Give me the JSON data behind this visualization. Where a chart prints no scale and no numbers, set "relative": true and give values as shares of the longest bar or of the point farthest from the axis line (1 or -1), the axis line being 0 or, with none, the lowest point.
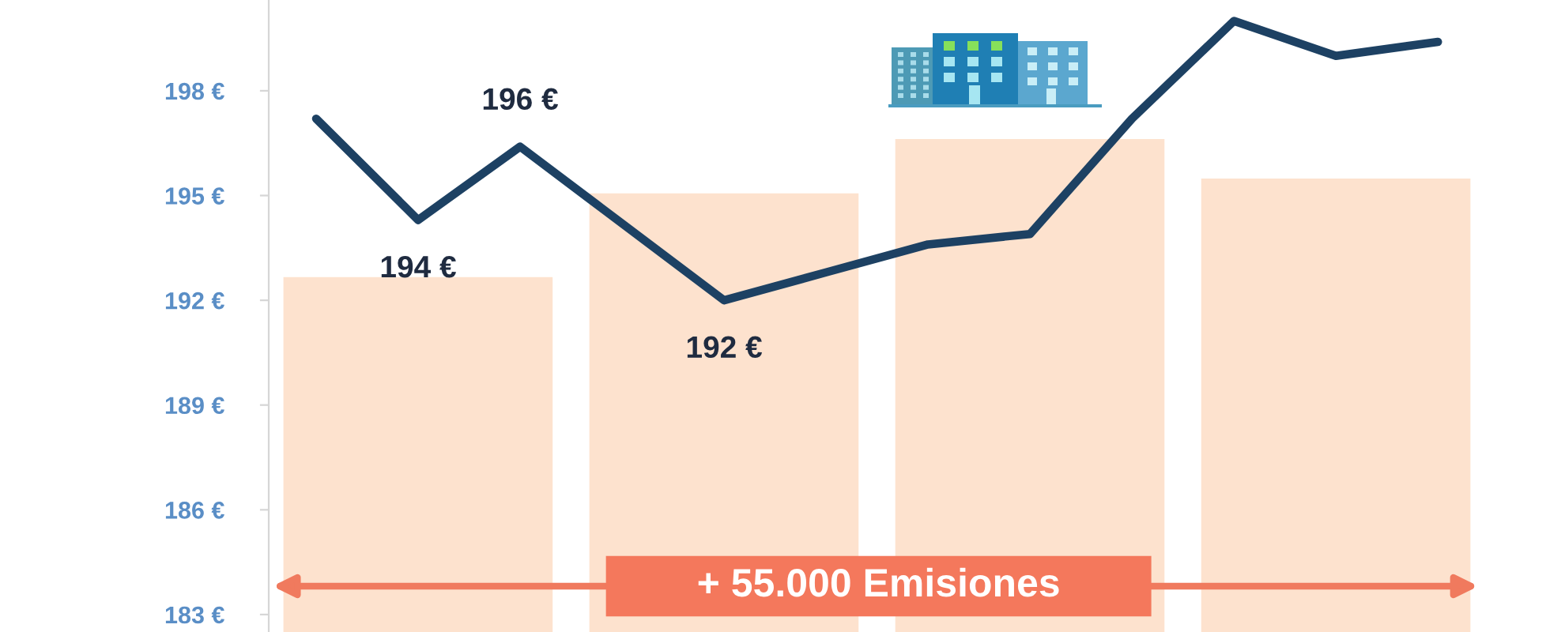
{
  "chart_data": [
    {
      "type": "bar",
      "relative": true,
      "categories": [
        null,
        null,
        null,
        null
      ],
      "series": [
        {
          "color": "#fde2ce",
          "values": [
            0.72,
            0.89,
            1.0,
            0.92
          ]
        }
      ],
      "tick_labels": false,
      "annotations": [
        "+ 55.000 Emisiones"
      ]
    },
    {
      "type": "line",
      "categories": [
        null,
        null,
        null,
        null,
        null,
        null,
        null,
        null,
        null,
        null,
        null,
        null
      ],
      "series": [
        {
          "color": "#1d4163",
          "values": [
            197.2,
            194.3,
            196.4,
            194.2,
            192.0,
            192.8,
            193.6,
            193.9,
            197.2,
            200.0,
            199.0,
            199.4
          ],
          "value_labels": [
            null,
            "194 €",
            "196 €",
            null,
            "192 €",
            null,
            null,
            null,
            null,
            null,
            null,
            null
          ]
        }
      ],
      "ylim": [
        182.5,
        200.6
      ],
      "yticks": [
        {
          "value": 183,
          "label": "183 €"
        },
        {
          "value": 186,
          "label": "186 €"
        },
        {
          "value": 189,
          "label": "189 €"
        },
        {
          "value": 192,
          "label": "192 €"
        },
        {
          "value": 195,
          "label": "195 €"
        },
        {
          "value": 198,
          "label": "198 €"
        }
      ],
      "tick_labels": "y"
    }
  ]
}
